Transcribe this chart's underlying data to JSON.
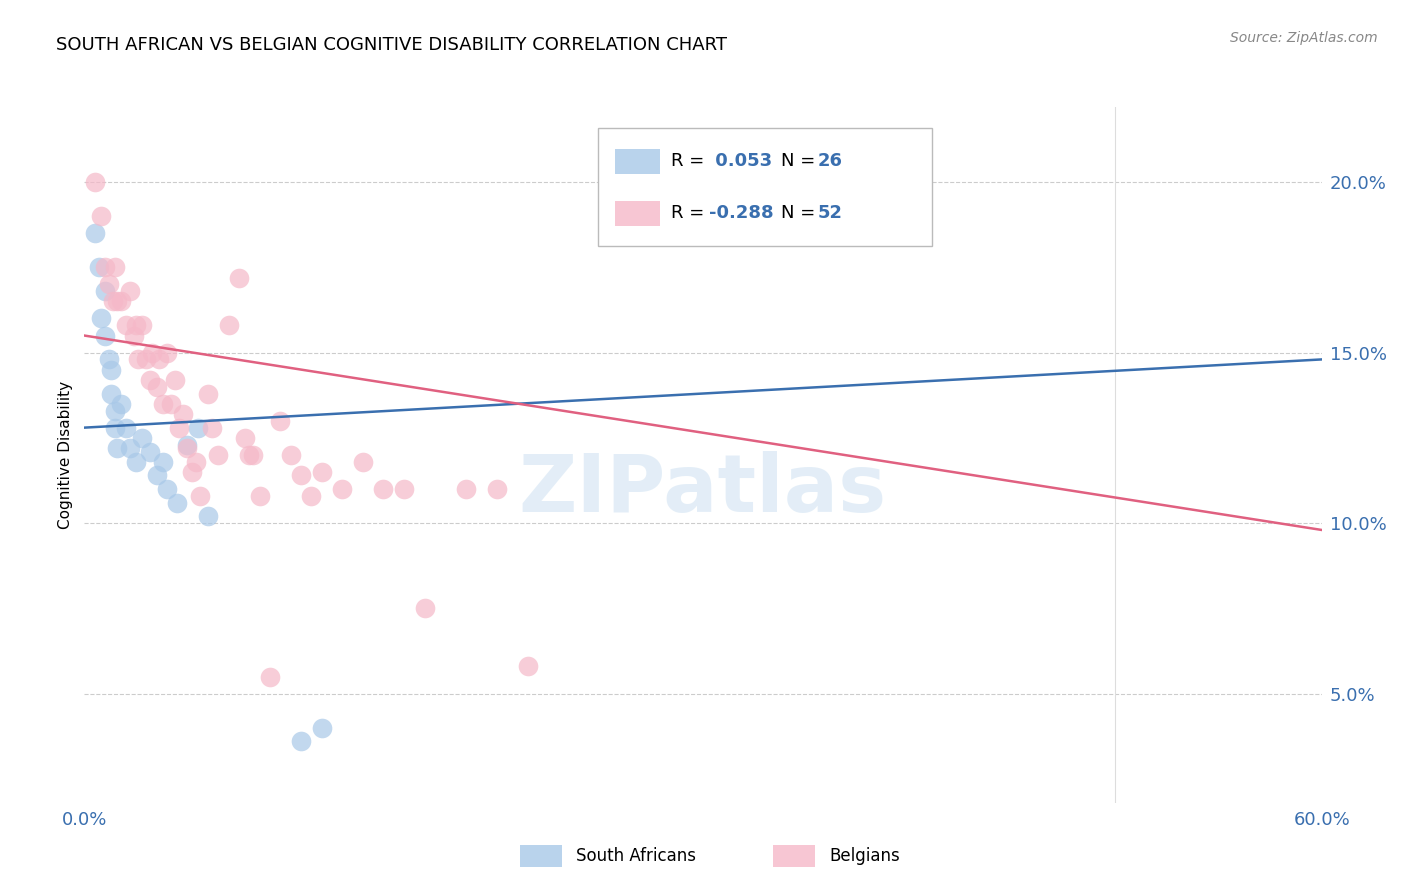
{
  "title": "SOUTH AFRICAN VS BELGIAN COGNITIVE DISABILITY CORRELATION CHART",
  "source": "Source: ZipAtlas.com",
  "ylabel": "Cognitive Disability",
  "yticks": [
    0.05,
    0.1,
    0.15,
    0.2
  ],
  "ytick_labels": [
    "5.0%",
    "10.0%",
    "15.0%",
    "20.0%"
  ],
  "xmin": 0.0,
  "xmax": 0.6,
  "ymin": 0.018,
  "ymax": 0.222,
  "blue_color": "#a8c8e8",
  "pink_color": "#f5b8c8",
  "blue_line_color": "#3a6faf",
  "pink_line_color": "#e06080",
  "blue_scatter_x": [
    0.005,
    0.007,
    0.008,
    0.01,
    0.01,
    0.012,
    0.013,
    0.013,
    0.015,
    0.015,
    0.016,
    0.018,
    0.02,
    0.022,
    0.025,
    0.028,
    0.032,
    0.035,
    0.038,
    0.04,
    0.045,
    0.05,
    0.055,
    0.06,
    0.105,
    0.115
  ],
  "blue_scatter_y": [
    0.185,
    0.175,
    0.16,
    0.168,
    0.155,
    0.148,
    0.145,
    0.138,
    0.133,
    0.128,
    0.122,
    0.135,
    0.128,
    0.122,
    0.118,
    0.125,
    0.121,
    0.114,
    0.118,
    0.11,
    0.106,
    0.123,
    0.128,
    0.102,
    0.036,
    0.04
  ],
  "pink_scatter_x": [
    0.005,
    0.008,
    0.01,
    0.012,
    0.014,
    0.015,
    0.016,
    0.018,
    0.02,
    0.022,
    0.024,
    0.025,
    0.026,
    0.028,
    0.03,
    0.032,
    0.033,
    0.035,
    0.036,
    0.038,
    0.04,
    0.042,
    0.044,
    0.046,
    0.048,
    0.05,
    0.052,
    0.054,
    0.056,
    0.06,
    0.062,
    0.065,
    0.07,
    0.075,
    0.078,
    0.08,
    0.082,
    0.085,
    0.09,
    0.095,
    0.1,
    0.105,
    0.11,
    0.115,
    0.125,
    0.135,
    0.145,
    0.155,
    0.165,
    0.185,
    0.2,
    0.215
  ],
  "pink_scatter_y": [
    0.2,
    0.19,
    0.175,
    0.17,
    0.165,
    0.175,
    0.165,
    0.165,
    0.158,
    0.168,
    0.155,
    0.158,
    0.148,
    0.158,
    0.148,
    0.142,
    0.15,
    0.14,
    0.148,
    0.135,
    0.15,
    0.135,
    0.142,
    0.128,
    0.132,
    0.122,
    0.115,
    0.118,
    0.108,
    0.138,
    0.128,
    0.12,
    0.158,
    0.172,
    0.125,
    0.12,
    0.12,
    0.108,
    0.055,
    0.13,
    0.12,
    0.114,
    0.108,
    0.115,
    0.11,
    0.118,
    0.11,
    0.11,
    0.075,
    0.11,
    0.11,
    0.058
  ],
  "blue_line_x": [
    0.0,
    0.6
  ],
  "blue_line_y": [
    0.128,
    0.148
  ],
  "pink_line_x": [
    0.0,
    0.6
  ],
  "pink_line_y": [
    0.155,
    0.098
  ],
  "watermark": "ZIPatlas",
  "title_fontsize": 13,
  "axis_color": "#3a6faf",
  "text_color_black": "#333333"
}
